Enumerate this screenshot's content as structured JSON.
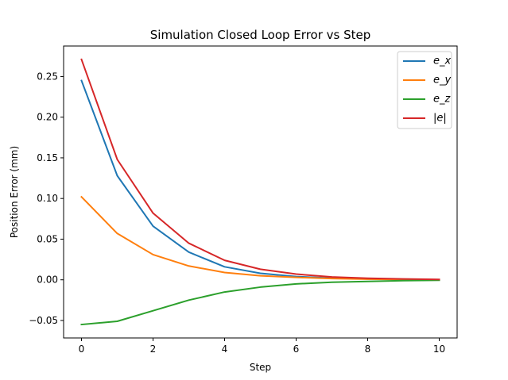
{
  "chart_data": {
    "type": "line",
    "title": "Simulation Closed Loop Error vs Step",
    "xlabel": "Step",
    "ylabel": "Position Error (mm)",
    "x": [
      0,
      1,
      2,
      3,
      4,
      5,
      6,
      7,
      8,
      9,
      10
    ],
    "xlim": [
      -0.5,
      10.5
    ],
    "ylim": [
      -0.0715,
      0.2875
    ],
    "xticks": [
      0,
      2,
      4,
      6,
      8,
      10
    ],
    "xtick_labels": [
      "0",
      "2",
      "4",
      "6",
      "8",
      "10"
    ],
    "yticks": [
      -0.05,
      0.0,
      0.05,
      0.1,
      0.15,
      0.2,
      0.25
    ],
    "ytick_labels": [
      "−0.05",
      "0.00",
      "0.05",
      "0.10",
      "0.15",
      "0.20",
      "0.25"
    ],
    "grid": false,
    "legend_position": "top-right",
    "series": [
      {
        "name": "e_x",
        "color": "#1f77b4",
        "values": [
          0.245,
          0.128,
          0.066,
          0.034,
          0.016,
          0.008,
          0.004,
          0.002,
          0.001,
          0.0005,
          0.0002
        ]
      },
      {
        "name": "e_y",
        "color": "#ff7f0e",
        "values": [
          0.102,
          0.057,
          0.031,
          0.017,
          0.009,
          0.005,
          0.003,
          0.0015,
          0.0008,
          0.0004,
          0.0002
        ]
      },
      {
        "name": "e_z",
        "color": "#2ca02c",
        "values": [
          -0.055,
          -0.051,
          -0.038,
          -0.025,
          -0.015,
          -0.009,
          -0.005,
          -0.003,
          -0.002,
          -0.001,
          -0.0005
        ]
      },
      {
        "name": "|e|",
        "color": "#d62728",
        "values": [
          0.271,
          0.148,
          0.082,
          0.045,
          0.024,
          0.013,
          0.007,
          0.0035,
          0.0019,
          0.0011,
          0.0005
        ]
      }
    ]
  }
}
